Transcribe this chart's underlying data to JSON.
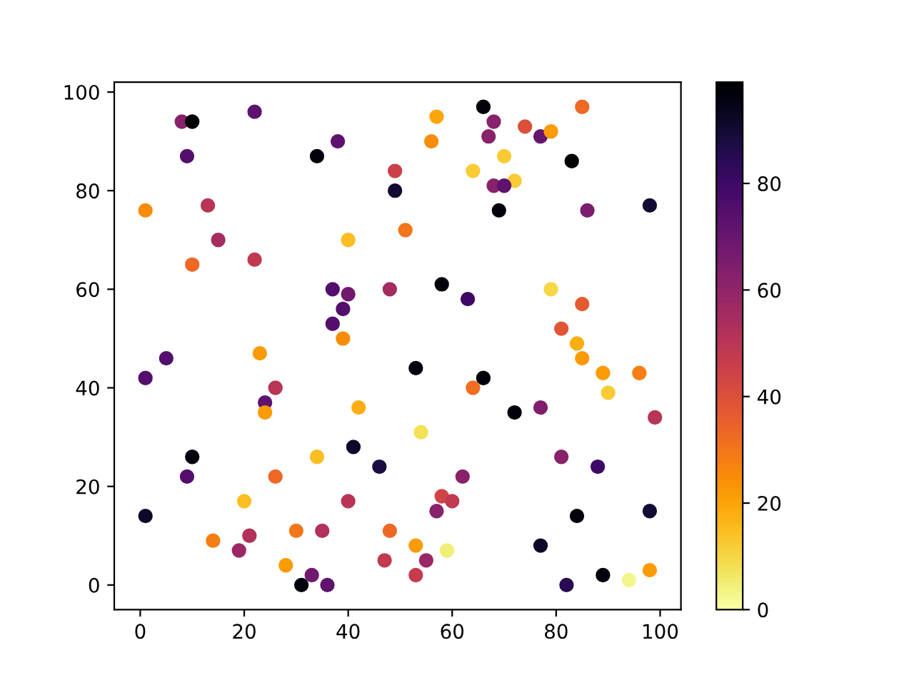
{
  "chart_data": {
    "type": "scatter",
    "x": [
      8,
      10,
      22,
      9,
      34,
      38,
      13,
      49,
      49,
      1,
      15,
      10,
      22,
      40,
      51,
      37,
      40,
      39,
      37,
      48,
      39,
      57,
      66,
      67,
      68,
      74,
      77,
      79,
      85,
      56,
      64,
      70,
      72,
      68,
      70,
      83,
      69,
      98,
      86,
      58,
      63,
      79,
      85,
      53,
      66,
      64,
      72,
      77,
      81,
      84,
      85,
      89,
      96,
      90,
      99,
      1,
      5,
      23,
      26,
      24,
      24,
      42,
      10,
      9,
      34,
      41,
      46,
      54,
      62,
      58,
      60,
      57,
      81,
      88,
      1,
      20,
      14,
      26,
      40,
      21,
      19,
      30,
      35,
      28,
      33,
      31,
      36,
      48,
      47,
      53,
      53,
      55,
      59,
      77,
      84,
      82,
      89,
      94,
      98,
      98
    ],
    "values": [
      94,
      94,
      96,
      87,
      87,
      90,
      77,
      84,
      80,
      76,
      70,
      65,
      66,
      70,
      72,
      60,
      59,
      56,
      53,
      60,
      50,
      95,
      97,
      91,
      94,
      93,
      91,
      92,
      97,
      90,
      84,
      87,
      82,
      81,
      81,
      86,
      76,
      77,
      76,
      61,
      58,
      60,
      57,
      44,
      42,
      40,
      35,
      36,
      52,
      49,
      46,
      43,
      43,
      39,
      34,
      42,
      46,
      47,
      40,
      37,
      35,
      36,
      26,
      22,
      26,
      28,
      24,
      31,
      22,
      18,
      17,
      15,
      26,
      24,
      14,
      17,
      9,
      22,
      17,
      10,
      7,
      11,
      11,
      4,
      2,
      0,
      0,
      11,
      5,
      8,
      2,
      5,
      7,
      8,
      14,
      0,
      2,
      1,
      3,
      15
    ],
    "cvalues": [
      62,
      98,
      72,
      75,
      97,
      72,
      50,
      45,
      90,
      25,
      55,
      33,
      48,
      15,
      30,
      75,
      68,
      75,
      75,
      55,
      25,
      20,
      97,
      62,
      62,
      40,
      70,
      22,
      33,
      25,
      12,
      12,
      12,
      62,
      72,
      98,
      97,
      90,
      65,
      97,
      80,
      10,
      37,
      97,
      97,
      32,
      97,
      64,
      38,
      18,
      22,
      22,
      28,
      12,
      50,
      75,
      75,
      22,
      50,
      72,
      22,
      18,
      97,
      75,
      15,
      92,
      88,
      8,
      62,
      44,
      48,
      62,
      62,
      80,
      92,
      15,
      28,
      33,
      50,
      52,
      58,
      30,
      52,
      22,
      68,
      97,
      72,
      33,
      48,
      22,
      47,
      58,
      5,
      92,
      97,
      85,
      97,
      3,
      22,
      90
    ],
    "xlim": [
      -5,
      104
    ],
    "xticks": [
      0,
      20,
      40,
      60,
      80,
      100
    ],
    "ylim": [
      -5,
      102
    ],
    "yticks": [
      0,
      20,
      40,
      60,
      80,
      100
    ],
    "clim": [
      0,
      99
    ],
    "cticks": [
      0,
      20,
      40,
      60,
      80
    ],
    "marker": "circle",
    "grid": false,
    "legend": false
  }
}
